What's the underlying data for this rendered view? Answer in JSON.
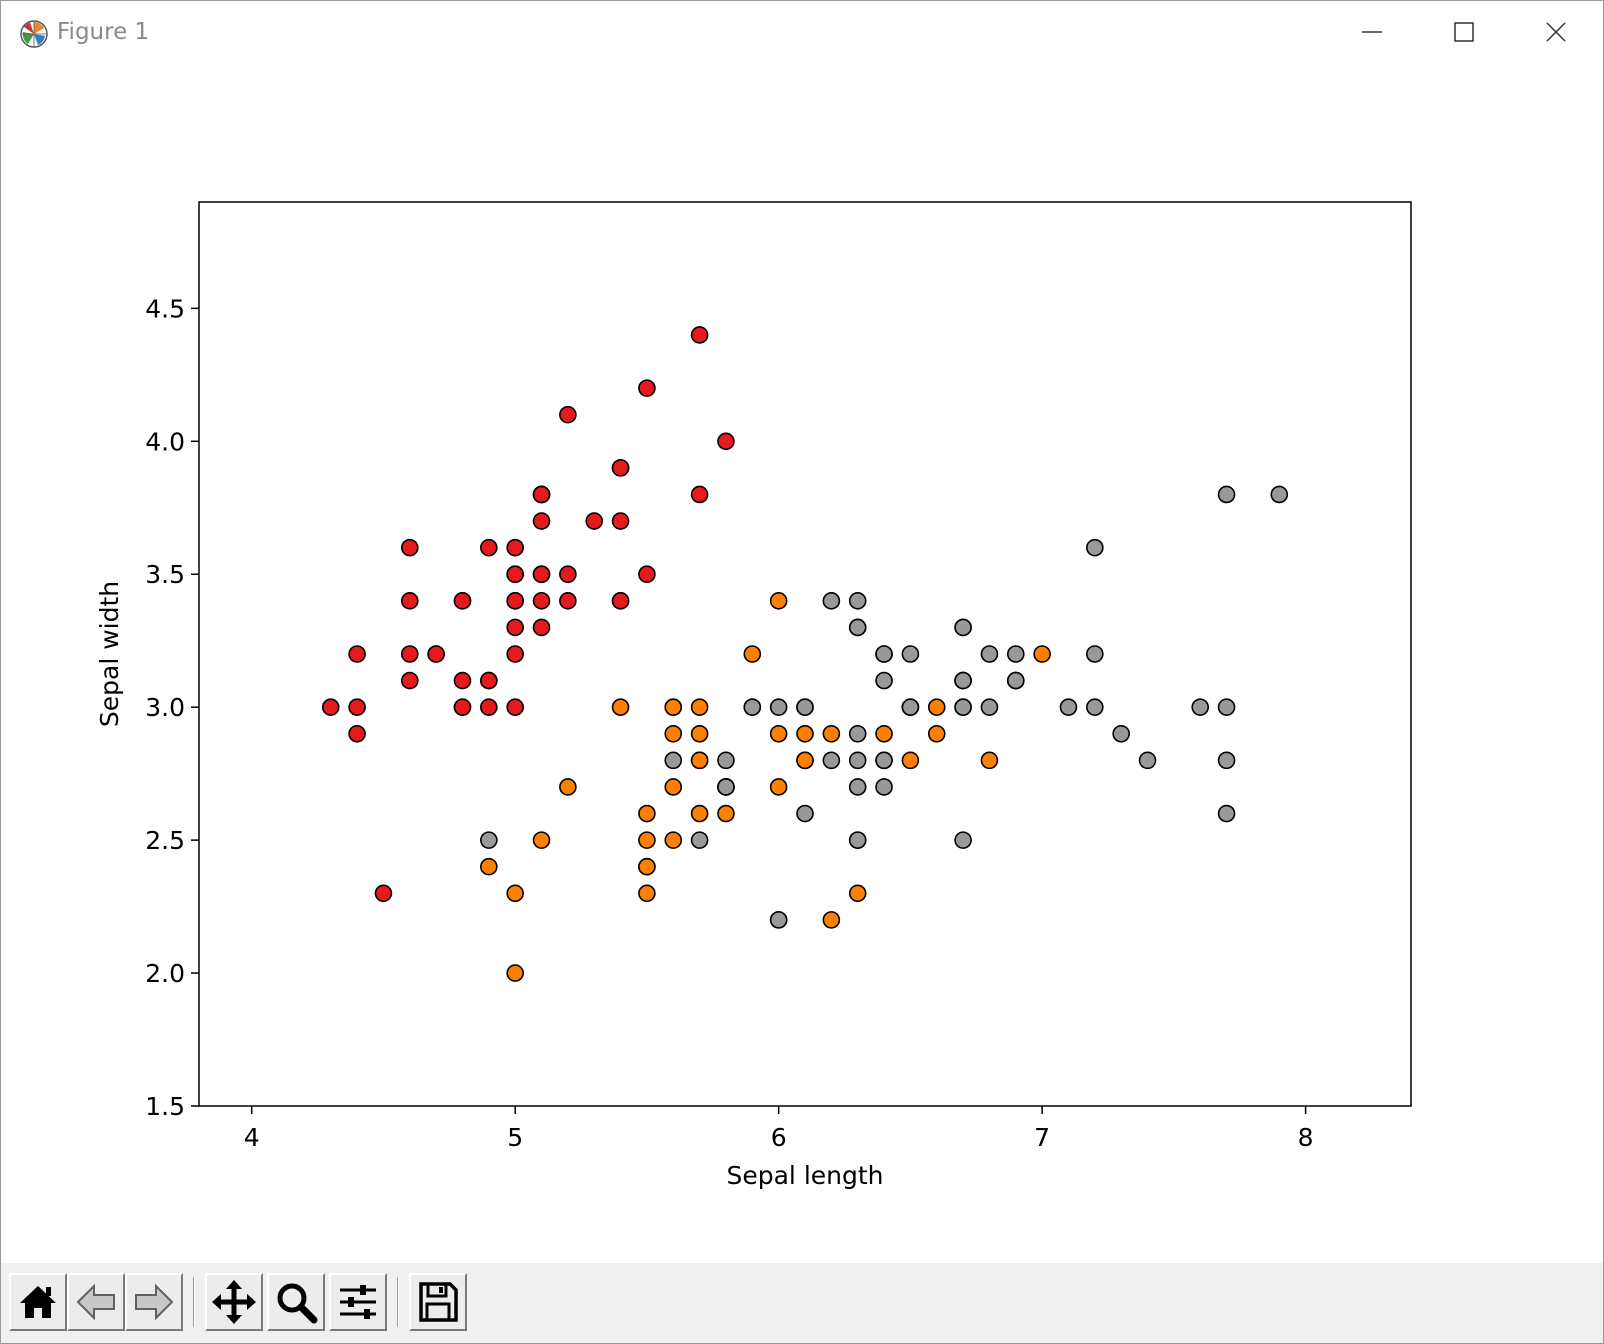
{
  "window": {
    "title": "Figure 1"
  },
  "icons": {
    "app": "matplotlib-icon",
    "minimize": "minimize-icon",
    "maximize": "maximize-icon",
    "close": "close-icon"
  },
  "toolbar": {
    "buttons": [
      {
        "name": "home",
        "icon": "home-icon"
      },
      {
        "name": "back",
        "icon": "arrow-left-icon"
      },
      {
        "name": "forward",
        "icon": "arrow-right-icon"
      },
      {
        "name": "pan",
        "icon": "move-icon"
      },
      {
        "name": "zoom",
        "icon": "magnifier-icon"
      },
      {
        "name": "configure-subplots",
        "icon": "sliders-icon"
      },
      {
        "name": "save",
        "icon": "floppy-disk-icon"
      }
    ]
  },
  "chart_data": {
    "type": "scatter",
    "xlabel": "Sepal length",
    "ylabel": "Sepal width",
    "xlim": [
      3.8,
      8.4
    ],
    "ylim": [
      1.5,
      4.9
    ],
    "xticks": [
      4,
      5,
      6,
      7,
      8
    ],
    "xtick_labels": [
      "4",
      "5",
      "6",
      "7",
      "8"
    ],
    "yticks": [
      1.5,
      2.0,
      2.5,
      3.0,
      3.5,
      4.0,
      4.5
    ],
    "ytick_labels": [
      "1.5",
      "2.0",
      "2.5",
      "3.0",
      "3.5",
      "4.0",
      "4.5"
    ],
    "grid": false,
    "legend": false,
    "series": [
      {
        "color": "#e41a1c",
        "points": [
          [
            5.1,
            3.5
          ],
          [
            4.9,
            3.0
          ],
          [
            4.7,
            3.2
          ],
          [
            4.6,
            3.1
          ],
          [
            5.0,
            3.6
          ],
          [
            5.4,
            3.9
          ],
          [
            4.6,
            3.4
          ],
          [
            5.0,
            3.4
          ],
          [
            4.4,
            2.9
          ],
          [
            4.9,
            3.1
          ],
          [
            5.4,
            3.7
          ],
          [
            4.8,
            3.4
          ],
          [
            4.8,
            3.0
          ],
          [
            4.3,
            3.0
          ],
          [
            5.8,
            4.0
          ],
          [
            5.7,
            4.4
          ],
          [
            5.4,
            3.9
          ],
          [
            5.1,
            3.5
          ],
          [
            5.7,
            3.8
          ],
          [
            5.1,
            3.8
          ],
          [
            5.4,
            3.4
          ],
          [
            5.1,
            3.7
          ],
          [
            4.6,
            3.6
          ],
          [
            5.1,
            3.3
          ],
          [
            4.8,
            3.4
          ],
          [
            5.0,
            3.0
          ],
          [
            5.0,
            3.4
          ],
          [
            5.2,
            3.5
          ],
          [
            5.2,
            3.4
          ],
          [
            4.7,
            3.2
          ],
          [
            4.8,
            3.1
          ],
          [
            5.4,
            3.4
          ],
          [
            5.2,
            4.1
          ],
          [
            5.5,
            4.2
          ],
          [
            4.9,
            3.1
          ],
          [
            5.0,
            3.2
          ],
          [
            5.5,
            3.5
          ],
          [
            4.9,
            3.6
          ],
          [
            4.4,
            3.0
          ],
          [
            5.1,
            3.4
          ],
          [
            5.0,
            3.5
          ],
          [
            4.5,
            2.3
          ],
          [
            4.4,
            3.2
          ],
          [
            5.0,
            3.5
          ],
          [
            5.1,
            3.8
          ],
          [
            4.8,
            3.0
          ],
          [
            5.1,
            3.8
          ],
          [
            4.6,
            3.2
          ],
          [
            5.3,
            3.7
          ],
          [
            5.0,
            3.3
          ]
        ]
      },
      {
        "color": "#ff7f00",
        "points": [
          [
            7.0,
            3.2
          ],
          [
            6.4,
            3.2
          ],
          [
            6.9,
            3.1
          ],
          [
            5.5,
            2.3
          ],
          [
            6.5,
            2.8
          ],
          [
            5.7,
            2.8
          ],
          [
            6.3,
            3.3
          ],
          [
            4.9,
            2.4
          ],
          [
            6.6,
            2.9
          ],
          [
            5.2,
            2.7
          ],
          [
            5.0,
            2.0
          ],
          [
            5.9,
            3.0
          ],
          [
            6.0,
            2.2
          ],
          [
            6.1,
            2.9
          ],
          [
            5.6,
            2.9
          ],
          [
            6.7,
            3.1
          ],
          [
            5.6,
            3.0
          ],
          [
            5.8,
            2.7
          ],
          [
            6.2,
            2.2
          ],
          [
            5.6,
            2.5
          ],
          [
            5.9,
            3.2
          ],
          [
            6.1,
            2.8
          ],
          [
            6.3,
            2.5
          ],
          [
            6.1,
            2.8
          ],
          [
            6.4,
            2.9
          ],
          [
            6.6,
            3.0
          ],
          [
            6.8,
            2.8
          ],
          [
            6.7,
            3.0
          ],
          [
            6.0,
            2.9
          ],
          [
            5.7,
            2.6
          ],
          [
            5.5,
            2.4
          ],
          [
            5.5,
            2.4
          ],
          [
            5.8,
            2.7
          ],
          [
            6.0,
            2.7
          ],
          [
            5.4,
            3.0
          ],
          [
            6.0,
            3.4
          ],
          [
            6.7,
            3.1
          ],
          [
            6.3,
            2.3
          ],
          [
            5.6,
            3.0
          ],
          [
            5.5,
            2.5
          ],
          [
            5.5,
            2.6
          ],
          [
            6.1,
            3.0
          ],
          [
            5.8,
            2.6
          ],
          [
            5.0,
            2.3
          ],
          [
            5.6,
            2.7
          ],
          [
            5.7,
            3.0
          ],
          [
            5.7,
            2.9
          ],
          [
            6.2,
            2.9
          ],
          [
            5.1,
            2.5
          ],
          [
            5.7,
            2.8
          ]
        ]
      },
      {
        "color": "#999999",
        "points": [
          [
            6.3,
            3.3
          ],
          [
            5.8,
            2.7
          ],
          [
            7.1,
            3.0
          ],
          [
            6.3,
            2.9
          ],
          [
            6.5,
            3.0
          ],
          [
            7.6,
            3.0
          ],
          [
            4.9,
            2.5
          ],
          [
            7.3,
            2.9
          ],
          [
            6.7,
            2.5
          ],
          [
            7.2,
            3.6
          ],
          [
            6.5,
            3.2
          ],
          [
            6.4,
            2.7
          ],
          [
            6.8,
            3.0
          ],
          [
            5.7,
            2.5
          ],
          [
            5.8,
            2.8
          ],
          [
            6.4,
            3.2
          ],
          [
            6.5,
            3.0
          ],
          [
            7.7,
            3.8
          ],
          [
            7.7,
            2.6
          ],
          [
            6.0,
            2.2
          ],
          [
            6.9,
            3.2
          ],
          [
            5.6,
            2.8
          ],
          [
            7.7,
            2.8
          ],
          [
            6.3,
            2.7
          ],
          [
            6.7,
            3.3
          ],
          [
            7.2,
            3.2
          ],
          [
            6.2,
            2.8
          ],
          [
            6.1,
            3.0
          ],
          [
            6.4,
            2.8
          ],
          [
            7.2,
            3.0
          ],
          [
            7.4,
            2.8
          ],
          [
            7.9,
            3.8
          ],
          [
            6.4,
            2.8
          ],
          [
            6.3,
            2.8
          ],
          [
            6.1,
            2.6
          ],
          [
            7.7,
            3.0
          ],
          [
            6.3,
            3.4
          ],
          [
            6.4,
            3.1
          ],
          [
            6.0,
            3.0
          ],
          [
            6.9,
            3.1
          ],
          [
            6.7,
            3.1
          ],
          [
            6.9,
            3.1
          ],
          [
            5.8,
            2.7
          ],
          [
            6.8,
            3.2
          ],
          [
            6.7,
            3.3
          ],
          [
            6.7,
            3.0
          ],
          [
            6.3,
            2.5
          ],
          [
            6.5,
            3.0
          ],
          [
            6.2,
            3.4
          ],
          [
            5.9,
            3.0
          ]
        ]
      }
    ]
  }
}
